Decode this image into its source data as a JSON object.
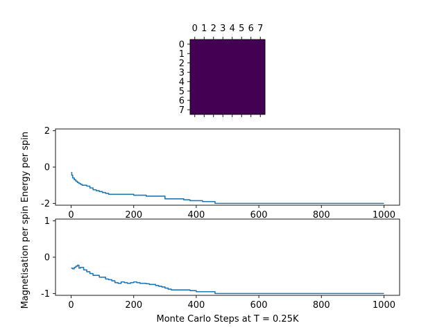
{
  "chart_data": [
    {
      "type": "heatmap",
      "title": "",
      "rows": 8,
      "cols": 8,
      "xticks": [
        "0",
        "1",
        "2",
        "3",
        "4",
        "5",
        "6",
        "7"
      ],
      "yticks": [
        "0",
        "1",
        "2",
        "3",
        "4",
        "5",
        "6",
        "7"
      ],
      "xaxis_position": "top",
      "colormap": "viridis",
      "values": [
        [
          -1,
          -1,
          -1,
          -1,
          -1,
          -1,
          -1,
          -1
        ],
        [
          -1,
          -1,
          -1,
          -1,
          -1,
          -1,
          -1,
          -1
        ],
        [
          -1,
          -1,
          -1,
          -1,
          -1,
          -1,
          -1,
          -1
        ],
        [
          -1,
          -1,
          -1,
          -1,
          -1,
          -1,
          -1,
          -1
        ],
        [
          -1,
          -1,
          -1,
          -1,
          -1,
          -1,
          -1,
          -1
        ],
        [
          -1,
          -1,
          -1,
          -1,
          -1,
          -1,
          -1,
          -1
        ],
        [
          -1,
          -1,
          -1,
          -1,
          -1,
          -1,
          -1,
          -1
        ],
        [
          -1,
          -1,
          -1,
          -1,
          -1,
          -1,
          -1,
          -1
        ]
      ],
      "cell_color": "#440154"
    },
    {
      "type": "line",
      "title": "",
      "xlabel": "",
      "ylabel": "Energy per spin",
      "xlim": [
        -50,
        1050
      ],
      "ylim": [
        -2.1,
        2.1
      ],
      "xticks": [
        0,
        200,
        400,
        600,
        800,
        1000
      ],
      "yticks": [
        -2,
        0,
        2
      ],
      "grid": false,
      "line_color": "#1f77b4",
      "series": [
        {
          "x": [
            0,
            2,
            5,
            10,
            15,
            20,
            25,
            30,
            35,
            40,
            50,
            60,
            70,
            80,
            90,
            100,
            110,
            120,
            140,
            160,
            180,
            200,
            220,
            240,
            260,
            280,
            300,
            320,
            340,
            360,
            380,
            400,
            420,
            440,
            460,
            480,
            500,
            600,
            700,
            800,
            900,
            1000
          ],
          "y": [
            -0.3,
            -0.45,
            -0.6,
            -0.7,
            -0.78,
            -0.85,
            -0.9,
            -0.95,
            -1.0,
            -1.0,
            -1.05,
            -1.15,
            -1.25,
            -1.3,
            -1.35,
            -1.4,
            -1.45,
            -1.5,
            -1.5,
            -1.5,
            -1.5,
            -1.55,
            -1.55,
            -1.6,
            -1.6,
            -1.6,
            -1.75,
            -1.75,
            -1.75,
            -1.8,
            -1.85,
            -1.85,
            -1.9,
            -1.9,
            -2.0,
            -2.0,
            -2.0,
            -2.0,
            -2.0,
            -2.0,
            -2.0,
            -2.0
          ]
        }
      ]
    },
    {
      "type": "line",
      "title": "",
      "xlabel": "Monte Carlo Steps at T = 0.25K",
      "ylabel": "Magnetisation per spin",
      "xlim": [
        -50,
        1050
      ],
      "ylim": [
        -1.05,
        1.05
      ],
      "xticks": [
        0,
        200,
        400,
        600,
        800,
        1000
      ],
      "yticks": [
        -1,
        0,
        1
      ],
      "grid": false,
      "line_color": "#1f77b4",
      "series": [
        {
          "x": [
            0,
            5,
            10,
            15,
            20,
            25,
            30,
            40,
            50,
            60,
            70,
            80,
            90,
            100,
            110,
            120,
            130,
            140,
            150,
            160,
            170,
            180,
            190,
            200,
            210,
            220,
            230,
            240,
            250,
            260,
            270,
            280,
            290,
            300,
            310,
            320,
            340,
            360,
            380,
            400,
            420,
            440,
            460,
            480,
            500,
            600,
            700,
            800,
            900,
            1000
          ],
          "y": [
            -0.3,
            -0.32,
            -0.28,
            -0.25,
            -0.22,
            -0.3,
            -0.28,
            -0.35,
            -0.4,
            -0.45,
            -0.5,
            -0.5,
            -0.55,
            -0.55,
            -0.6,
            -0.62,
            -0.65,
            -0.7,
            -0.72,
            -0.68,
            -0.7,
            -0.72,
            -0.7,
            -0.68,
            -0.7,
            -0.72,
            -0.72,
            -0.73,
            -0.75,
            -0.75,
            -0.78,
            -0.8,
            -0.82,
            -0.85,
            -0.88,
            -0.9,
            -0.9,
            -0.9,
            -0.92,
            -0.95,
            -0.95,
            -0.95,
            -1.0,
            -1.0,
            -1.0,
            -1.0,
            -1.0,
            -1.0,
            -1.0,
            -1.0
          ]
        }
      ]
    }
  ]
}
